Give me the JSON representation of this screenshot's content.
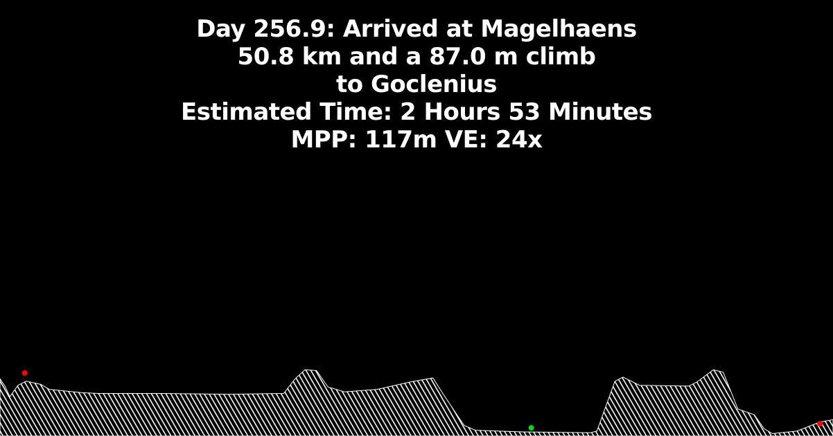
{
  "status": {
    "arrival": "Day 256.9: Arrived at Magelhaens",
    "leg_summary": "50.8 km and a 87.0 m climb",
    "destination": "to Goclenius",
    "estimated_time": "Estimated Time: 2 Hours 53 Minutes",
    "scale": "MPP: 117m VE: 24x"
  },
  "colors": {
    "background": "#000000",
    "text": "#ffffff",
    "terrain_hatch": "#ffffff",
    "marker_origin": "#ff0000",
    "marker_current": "#00e000",
    "marker_destination": "#ff0000"
  },
  "profile": {
    "unit_x": "km",
    "unit_y": "m",
    "route_length_km": 50.8,
    "points": [
      [
        0.0,
        70
      ],
      [
        0.3,
        61
      ],
      [
        0.6,
        48
      ],
      [
        1.1,
        62
      ],
      [
        1.6,
        67
      ],
      [
        2.5,
        63
      ],
      [
        3.0,
        57
      ],
      [
        5.0,
        53
      ],
      [
        6.0,
        52
      ],
      [
        10.0,
        52
      ],
      [
        14.0,
        51
      ],
      [
        17.3,
        52
      ],
      [
        18.0,
        70
      ],
      [
        18.6,
        81
      ],
      [
        19.3,
        80
      ],
      [
        20.0,
        60
      ],
      [
        21.0,
        54
      ],
      [
        23.0,
        57
      ],
      [
        25.0,
        66
      ],
      [
        26.4,
        71
      ],
      [
        27.0,
        52
      ],
      [
        28.3,
        13
      ],
      [
        29.0,
        7
      ],
      [
        32.0,
        5
      ],
      [
        36.0,
        4
      ],
      [
        36.4,
        6
      ],
      [
        37.5,
        67
      ],
      [
        38.0,
        72
      ],
      [
        39.0,
        62
      ],
      [
        42.0,
        61
      ],
      [
        42.5,
        66
      ],
      [
        43.5,
        81
      ],
      [
        44.1,
        78
      ],
      [
        45.0,
        33
      ],
      [
        46.0,
        26
      ],
      [
        46.6,
        9
      ],
      [
        47.1,
        3
      ],
      [
        48.6,
        6
      ],
      [
        50.0,
        17
      ],
      [
        50.8,
        20
      ]
    ],
    "y_range_m": [
      0,
      110
    ],
    "markers": [
      {
        "name": "start",
        "km": 1.5,
        "elevation_m": 77
      },
      {
        "name": "current",
        "km": 32.4,
        "elevation_m": 10
      },
      {
        "name": "destination",
        "km": 50.0,
        "elevation_m": 15
      }
    ]
  }
}
